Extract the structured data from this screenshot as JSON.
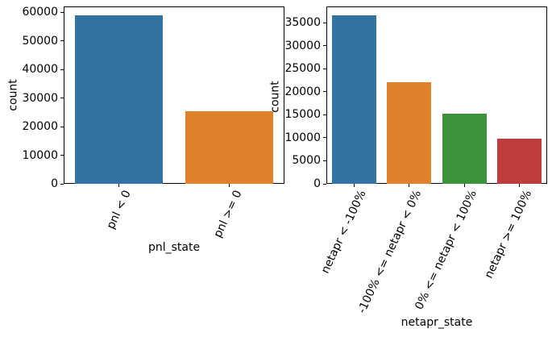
{
  "figure": {
    "background": "#ffffff",
    "text_color": "#000000",
    "spine_color": "#000000"
  },
  "chart_data": [
    {
      "type": "bar",
      "id": "pnl",
      "title": "",
      "xlabel": "pnl_state",
      "ylabel": "count",
      "categories": [
        "pnl < 0",
        "pnl >= 0"
      ],
      "values": [
        59000,
        25300
      ],
      "bar_colors": [
        "#3274A1",
        "#E1812C"
      ],
      "yticks": [
        0,
        10000,
        20000,
        30000,
        40000,
        50000,
        60000
      ],
      "ylim": [
        0,
        62100
      ],
      "grid": false,
      "legend": "none",
      "xtick_rotation_deg": 65
    },
    {
      "type": "bar",
      "id": "netapr",
      "title": "",
      "xlabel": "netapr_state",
      "ylabel": "count",
      "categories": [
        "netapr < -100%",
        "-100% <= netapr < 0%",
        "0% <= netapr < 100%",
        "netapr >= 100%"
      ],
      "values": [
        36700,
        22100,
        15300,
        9900
      ],
      "bar_colors": [
        "#3274A1",
        "#E1812C",
        "#3A923A",
        "#C03D3E"
      ],
      "yticks": [
        0,
        5000,
        10000,
        15000,
        20000,
        25000,
        30000,
        35000
      ],
      "ylim": [
        0,
        38550
      ],
      "grid": false,
      "legend": "none",
      "xtick_rotation_deg": 65
    }
  ]
}
